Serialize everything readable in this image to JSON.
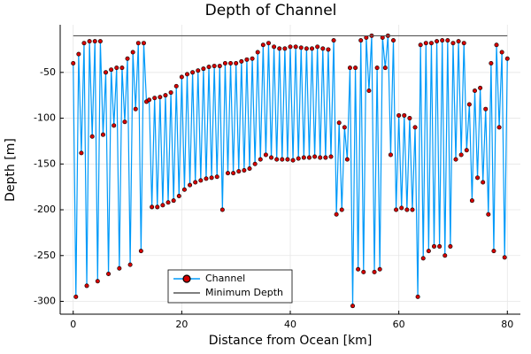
{
  "chart_data": {
    "type": "line",
    "title": "Depth of Channel",
    "xlabel": "Distance from Ocean [km]",
    "ylabel": "Depth [m]",
    "xlim": [
      -2.4,
      82.4
    ],
    "ylim": [
      -314,
      2
    ],
    "xticks": [
      0,
      20,
      40,
      60,
      80
    ],
    "yticks": [
      -300,
      -250,
      -200,
      -150,
      -100,
      -50
    ],
    "grid": true,
    "legend": "lower center",
    "series": [
      {
        "name": "Channel",
        "color": "#009af9",
        "marker_color": "#d40000",
        "x": [
          0,
          0.5,
          1,
          1.5,
          2,
          2.5,
          3,
          3.5,
          4,
          4.5,
          5,
          5.5,
          6,
          6.5,
          7,
          7.5,
          8,
          8.5,
          9,
          9.5,
          10,
          10.5,
          11,
          11.5,
          12,
          12.5,
          13,
          13.5,
          14,
          14.5,
          15,
          15.5,
          16,
          16.5,
          17,
          17.5,
          18,
          18.5,
          19,
          19.5,
          20,
          20.5,
          21,
          21.5,
          22,
          22.5,
          23,
          23.5,
          24,
          24.5,
          25,
          25.5,
          26,
          26.5,
          27,
          27.5,
          28,
          28.5,
          29,
          29.5,
          30,
          30.5,
          31,
          31.5,
          32,
          32.5,
          33,
          33.5,
          34,
          34.5,
          35,
          35.5,
          36,
          36.5,
          37,
          37.5,
          38,
          38.5,
          39,
          39.5,
          40,
          40.5,
          41,
          41.5,
          42,
          42.5,
          43,
          43.5,
          44,
          44.5,
          45,
          45.5,
          46,
          46.5,
          47,
          47.5,
          48,
          48.5,
          49,
          49.5,
          50,
          50.5,
          51,
          51.5,
          52,
          52.5,
          53,
          53.5,
          54,
          54.5,
          55,
          55.5,
          56,
          56.5,
          57,
          57.5,
          58,
          58.5,
          59,
          59.5,
          60,
          60.5,
          61,
          61.5,
          62,
          62.5,
          63,
          63.5,
          64,
          64.5,
          65,
          65.5,
          66,
          66.5,
          67,
          67.5,
          68,
          68.5,
          69,
          69.5,
          70,
          70.5,
          71,
          71.5,
          72,
          72.5,
          73,
          73.5,
          74,
          74.5,
          75,
          75.5,
          76,
          76.5,
          77,
          77.5,
          78,
          78.5,
          79,
          79.5,
          80
        ],
        "values": [
          -40,
          -295,
          -30,
          -138,
          -18,
          -283,
          -16,
          -120,
          -16,
          -278,
          -16,
          -118,
          -50,
          -270,
          -47,
          -108,
          -45,
          -264,
          -45,
          -104,
          -35,
          -260,
          -28,
          -90,
          -18,
          -245,
          -18,
          -82,
          -80,
          -197,
          -78,
          -197,
          -77,
          -195,
          -75,
          -192,
          -72,
          -190,
          -65,
          -185,
          -55,
          -178,
          -52,
          -173,
          -50,
          -170,
          -48,
          -168,
          -46,
          -166,
          -44,
          -165,
          -43,
          -164,
          -43,
          -200,
          -40,
          -160,
          -40,
          -160,
          -40,
          -158,
          -38,
          -157,
          -36,
          -155,
          -35,
          -150,
          -28,
          -145,
          -20,
          -140,
          -18,
          -143,
          -22,
          -145,
          -24,
          -145,
          -24,
          -145,
          -22,
          -146,
          -22,
          -144,
          -23,
          -143,
          -24,
          -143,
          -24,
          -142,
          -22,
          -143,
          -24,
          -143,
          -25,
          -142,
          -15,
          -205,
          -105,
          -200,
          -110,
          -145,
          -45,
          -305,
          -45,
          -265,
          -15,
          -268,
          -12,
          -70,
          -10,
          -268,
          -45,
          -265,
          -12,
          -45,
          -10,
          -140,
          -15,
          -200,
          -97,
          -198,
          -97,
          -200,
          -100,
          -200,
          -110,
          -295,
          -20,
          -253,
          -18,
          -245,
          -18,
          -240,
          -16,
          -240,
          -15,
          -250,
          -15,
          -240,
          -18,
          -145,
          -16,
          -140,
          -18,
          -135,
          -85,
          -190,
          -70,
          -165,
          -67,
          -170,
          -90,
          -205,
          -40,
          -245,
          -20,
          -110,
          -28,
          -252,
          -35
        ]
      },
      {
        "name": "Minimum Depth",
        "color": "#555555",
        "x": [
          0,
          80
        ],
        "values": [
          -10,
          -10
        ]
      }
    ]
  }
}
